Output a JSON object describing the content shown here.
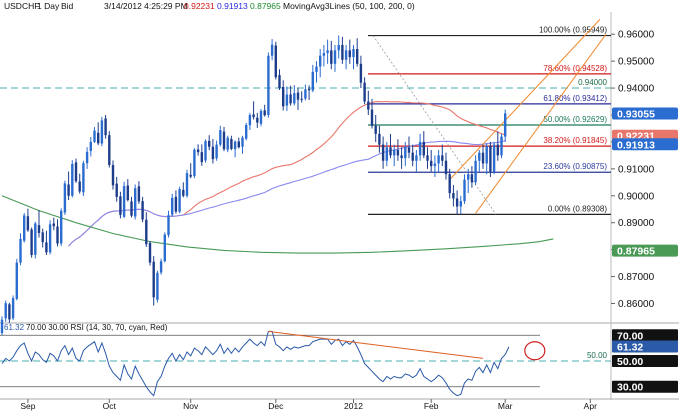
{
  "header": {
    "symbol": "USDCHF",
    "timeframe": "1 Day",
    "side": "Bid",
    "datetime": "3/14/2012  4:25:29 PM",
    "ohlc_values": [
      "0.92231",
      "0.91913",
      "0.87965"
    ],
    "ohlc_colors": [
      "#d01818",
      "#2a2ae0",
      "#1a8a2a"
    ],
    "indicator": "MovingAvg3Lines (50, 100, 200, 0)"
  },
  "rsi_header": {
    "value": "61.32",
    "params": "70.00  30.00  RSI (14, 30, 70, cyan, Red)"
  },
  "colors": {
    "bull": "#2a6ccf",
    "bear": "#1d3c8a",
    "ma50": "#e8766a",
    "ma100": "#8a8af0",
    "ma200": "#4a9a56",
    "rsi_line": "#2a5aa8",
    "rsi_trend": "#e06020",
    "circle": "#d02020",
    "channel": "#f08a30",
    "fib_0": "#222222",
    "fib_236": "#2a3a9a",
    "fib_382": "#d01818",
    "fib_500": "#1a7a5a",
    "fib_618": "#2a2a9a",
    "fib_786": "#d01818",
    "fib_100": "#222222",
    "dashed": "#4ab0b0"
  },
  "chart_data": {
    "type": "candlestick",
    "symbol": "USDCHF",
    "price_axis": {
      "range": [
        0.8535,
        0.9675
      ],
      "ticks": [
        "0.96000",
        "0.95000",
        "0.94000",
        "0.93000",
        "0.92000",
        "0.91000",
        "0.90000",
        "0.89000",
        "0.88000",
        "0.87000",
        "0.86000"
      ],
      "tick_values": [
        0.96,
        0.95,
        0.94,
        0.93,
        0.92,
        0.91,
        0.9,
        0.89,
        0.88,
        0.87,
        0.86
      ]
    },
    "x_axis": {
      "labels": [
        "Sep",
        "Oct",
        "Nov",
        "Dec",
        "2012",
        "Feb",
        "Mar",
        "Apr"
      ],
      "label_bar_index": [
        7,
        29,
        51,
        74,
        95,
        116,
        136,
        159
      ]
    },
    "candles": [
      [
        0.849,
        0.8552,
        0.8481,
        0.854
      ],
      [
        0.8545,
        0.8611,
        0.8532,
        0.8601
      ],
      [
        0.8597,
        0.8603,
        0.8528,
        0.8541
      ],
      [
        0.8545,
        0.863,
        0.8538,
        0.862
      ],
      [
        0.8617,
        0.8766,
        0.8612,
        0.8752
      ],
      [
        0.8752,
        0.8861,
        0.8742,
        0.884
      ],
      [
        0.8833,
        0.8936,
        0.8826,
        0.8927
      ],
      [
        0.8924,
        0.8952,
        0.8866,
        0.8872
      ],
      [
        0.8875,
        0.8882,
        0.877,
        0.878
      ],
      [
        0.8781,
        0.8903,
        0.8767,
        0.8897
      ],
      [
        0.8891,
        0.8947,
        0.8845,
        0.8862
      ],
      [
        0.8864,
        0.8878,
        0.8808,
        0.8828
      ],
      [
        0.8827,
        0.887,
        0.878,
        0.879
      ],
      [
        0.879,
        0.8909,
        0.8782,
        0.8894
      ],
      [
        0.8897,
        0.8919,
        0.8872,
        0.8887
      ],
      [
        0.8886,
        0.8913,
        0.8812,
        0.8823
      ],
      [
        0.8823,
        0.8953,
        0.8814,
        0.8944
      ],
      [
        0.8938,
        0.9056,
        0.8929,
        0.9046
      ],
      [
        0.9042,
        0.909,
        0.8984,
        0.9
      ],
      [
        0.9,
        0.9132,
        0.8994,
        0.9118
      ],
      [
        0.9124,
        0.9138,
        0.9048,
        0.9054
      ],
      [
        0.9053,
        0.9082,
        0.9008,
        0.9016
      ],
      [
        0.9013,
        0.913,
        0.8999,
        0.9121
      ],
      [
        0.9121,
        0.918,
        0.91,
        0.9163
      ],
      [
        0.9166,
        0.9218,
        0.9146,
        0.92
      ],
      [
        0.92,
        0.9255,
        0.9196,
        0.9242
      ],
      [
        0.9234,
        0.9273,
        0.9188,
        0.9195
      ],
      [
        0.9194,
        0.9293,
        0.9184,
        0.928
      ],
      [
        0.9287,
        0.93,
        0.9212,
        0.9225
      ],
      [
        0.9225,
        0.924,
        0.9105,
        0.9114
      ],
      [
        0.9114,
        0.9131,
        0.9023,
        0.9039
      ],
      [
        0.9045,
        0.907,
        0.8978,
        0.8996
      ],
      [
        0.8998,
        0.9015,
        0.8916,
        0.8929
      ],
      [
        0.8922,
        0.9052,
        0.8917,
        0.9036
      ],
      [
        0.9038,
        0.9062,
        0.8979,
        0.8984
      ],
      [
        0.8979,
        0.8996,
        0.892,
        0.8926
      ],
      [
        0.8923,
        0.9042,
        0.8912,
        0.9028
      ],
      [
        0.9035,
        0.9054,
        0.897,
        0.8979
      ],
      [
        0.898,
        0.8996,
        0.8902,
        0.8912
      ],
      [
        0.8911,
        0.8939,
        0.881,
        0.882
      ],
      [
        0.8825,
        0.8831,
        0.8741,
        0.8752
      ],
      [
        0.8755,
        0.8776,
        0.8592,
        0.8623
      ],
      [
        0.8614,
        0.8722,
        0.8604,
        0.8714
      ],
      [
        0.8715,
        0.8767,
        0.8707,
        0.8757
      ],
      [
        0.8757,
        0.8864,
        0.8753,
        0.8856
      ],
      [
        0.8854,
        0.8944,
        0.8845,
        0.8928
      ],
      [
        0.893,
        0.9007,
        0.8923,
        0.8992
      ],
      [
        0.8996,
        0.902,
        0.8934,
        0.8941
      ],
      [
        0.8941,
        0.9034,
        0.8935,
        0.9025
      ],
      [
        0.9022,
        0.905,
        0.8994,
        0.9
      ],
      [
        0.9,
        0.9096,
        0.8993,
        0.9084
      ],
      [
        0.9078,
        0.9121,
        0.9065,
        0.9071
      ],
      [
        0.9073,
        0.9177,
        0.9065,
        0.9171
      ],
      [
        0.9172,
        0.9191,
        0.9149,
        0.9162
      ],
      [
        0.9162,
        0.9191,
        0.9111,
        0.9125
      ],
      [
        0.9131,
        0.9209,
        0.9123,
        0.9203
      ],
      [
        0.9204,
        0.9225,
        0.9169,
        0.9182
      ],
      [
        0.9182,
        0.9211,
        0.912,
        0.9136
      ],
      [
        0.9139,
        0.9205,
        0.913,
        0.919
      ],
      [
        0.919,
        0.926,
        0.9183,
        0.9244
      ],
      [
        0.9238,
        0.9256,
        0.9166,
        0.9173
      ],
      [
        0.9171,
        0.9223,
        0.9162,
        0.9216
      ],
      [
        0.9211,
        0.9223,
        0.9169,
        0.9174
      ],
      [
        0.9173,
        0.9206,
        0.9143,
        0.9201
      ],
      [
        0.9202,
        0.9216,
        0.9176,
        0.918
      ],
      [
        0.9182,
        0.9223,
        0.9156,
        0.9216
      ],
      [
        0.9212,
        0.9271,
        0.9206,
        0.9263
      ],
      [
        0.9262,
        0.9308,
        0.9244,
        0.93
      ],
      [
        0.9302,
        0.9351,
        0.9283,
        0.9292
      ],
      [
        0.929,
        0.9308,
        0.9252,
        0.9272
      ],
      [
        0.9267,
        0.9322,
        0.9258,
        0.9315
      ],
      [
        0.9317,
        0.9338,
        0.9294,
        0.9299
      ],
      [
        0.93,
        0.9532,
        0.929,
        0.952
      ],
      [
        0.952,
        0.9582,
        0.9503,
        0.9561
      ],
      [
        0.9558,
        0.9572,
        0.9432,
        0.944
      ],
      [
        0.9448,
        0.947,
        0.9393,
        0.94
      ],
      [
        0.9404,
        0.9429,
        0.9317,
        0.9332
      ],
      [
        0.9335,
        0.9406,
        0.9315,
        0.9376
      ],
      [
        0.9376,
        0.9409,
        0.9335,
        0.9343
      ],
      [
        0.9343,
        0.9411,
        0.9335,
        0.9381
      ],
      [
        0.9383,
        0.9402,
        0.9319,
        0.9357
      ],
      [
        0.936,
        0.9388,
        0.9346,
        0.9358
      ],
      [
        0.9361,
        0.9413,
        0.9354,
        0.9395
      ],
      [
        0.9397,
        0.941,
        0.9356,
        0.9392
      ],
      [
        0.9391,
        0.9486,
        0.9385,
        0.946
      ],
      [
        0.946,
        0.95,
        0.942,
        0.948
      ],
      [
        0.948,
        0.9545,
        0.944,
        0.952
      ],
      [
        0.952,
        0.956,
        0.948,
        0.953
      ],
      [
        0.953,
        0.958,
        0.949,
        0.954
      ],
      [
        0.954,
        0.9575,
        0.947,
        0.949
      ],
      [
        0.949,
        0.956,
        0.946,
        0.954
      ],
      [
        0.954,
        0.9595,
        0.951,
        0.956
      ],
      [
        0.956,
        0.959,
        0.949,
        0.9505
      ],
      [
        0.9505,
        0.956,
        0.947,
        0.954
      ],
      [
        0.954,
        0.958,
        0.949,
        0.9515
      ],
      [
        0.9515,
        0.956,
        0.947,
        0.9545
      ],
      [
        0.9545,
        0.9585,
        0.948,
        0.949
      ],
      [
        0.949,
        0.952,
        0.94,
        0.942
      ],
      [
        0.942,
        0.944,
        0.934,
        0.935
      ],
      [
        0.935,
        0.939,
        0.93,
        0.932
      ],
      [
        0.932,
        0.936,
        0.925,
        0.926
      ],
      [
        0.926,
        0.93,
        0.92,
        0.923
      ],
      [
        0.923,
        0.926,
        0.916,
        0.919
      ],
      [
        0.919,
        0.922,
        0.91,
        0.913
      ],
      [
        0.913,
        0.92,
        0.911,
        0.918
      ],
      [
        0.918,
        0.923,
        0.914,
        0.915
      ],
      [
        0.915,
        0.919,
        0.911,
        0.917
      ],
      [
        0.917,
        0.921,
        0.913,
        0.915
      ],
      [
        0.915,
        0.918,
        0.91,
        0.914
      ],
      [
        0.914,
        0.92,
        0.911,
        0.918
      ],
      [
        0.918,
        0.922,
        0.914,
        0.916
      ],
      [
        0.916,
        0.919,
        0.911,
        0.913
      ],
      [
        0.913,
        0.917,
        0.909,
        0.915
      ],
      [
        0.915,
        0.923,
        0.913,
        0.92
      ],
      [
        0.92,
        0.924,
        0.914,
        0.915
      ],
      [
        0.915,
        0.918,
        0.91,
        0.913
      ],
      [
        0.913,
        0.917,
        0.909,
        0.911
      ],
      [
        0.911,
        0.915,
        0.907,
        0.912
      ],
      [
        0.912,
        0.917,
        0.909,
        0.915
      ],
      [
        0.915,
        0.919,
        0.911,
        0.913
      ],
      [
        0.913,
        0.916,
        0.906,
        0.908
      ],
      [
        0.908,
        0.91,
        0.899,
        0.901
      ],
      [
        0.901,
        0.904,
        0.896,
        0.899
      ],
      [
        0.899,
        0.902,
        0.893,
        0.896
      ],
      [
        0.896,
        0.9,
        0.8931,
        0.898
      ],
      [
        0.898,
        0.908,
        0.897,
        0.906
      ],
      [
        0.906,
        0.91,
        0.901,
        0.908
      ],
      [
        0.908,
        0.911,
        0.903,
        0.905
      ],
      [
        0.905,
        0.915,
        0.904,
        0.913
      ],
      [
        0.913,
        0.917,
        0.909,
        0.916
      ],
      [
        0.916,
        0.919,
        0.91,
        0.912
      ],
      [
        0.912,
        0.9195,
        0.908,
        0.9185
      ],
      [
        0.9185,
        0.92,
        0.907,
        0.909
      ],
      [
        0.909,
        0.92,
        0.908,
        0.919
      ],
      [
        0.919,
        0.924,
        0.913,
        0.915
      ],
      [
        0.915,
        0.923,
        0.914,
        0.922
      ],
      [
        0.922,
        0.932,
        0.92,
        0.9306
      ]
    ],
    "moving_averages": [
      {
        "name": "MA 50",
        "period": 50,
        "last_value": 0.92231
      },
      {
        "name": "MA 100",
        "period": 100,
        "last_value": 0.91913
      },
      {
        "name": "MA 200",
        "period": 200,
        "last_value": 0.87965,
        "points": [
          [
            0,
            0.9
          ],
          [
            10,
            0.8945
          ],
          [
            20,
            0.89
          ],
          [
            30,
            0.886
          ],
          [
            40,
            0.883
          ],
          [
            50,
            0.881
          ],
          [
            60,
            0.8797
          ],
          [
            70,
            0.879
          ],
          [
            80,
            0.8787
          ],
          [
            90,
            0.8787
          ],
          [
            100,
            0.879
          ],
          [
            110,
            0.8796
          ],
          [
            120,
            0.8803
          ],
          [
            130,
            0.8812
          ],
          [
            140,
            0.8822
          ],
          [
            145,
            0.8829
          ],
          [
            149,
            0.884
          ]
        ]
      }
    ],
    "fibonacci": [
      {
        "label": "100.00% (0.95949)",
        "value": 0.95949
      },
      {
        "label": "78.60% (0.94528)",
        "value": 0.94528
      },
      {
        "label": "61.80% (0.93412)",
        "value": 0.93412
      },
      {
        "label": "50.00% (0.92629)",
        "value": 0.92629
      },
      {
        "label": "38.20% (0.91845)",
        "value": 0.91845
      },
      {
        "label": "23.60% (0.90875)",
        "value": 0.90875
      },
      {
        "label": "0.00% (0.89308)",
        "value": 0.89308
      }
    ],
    "horizontal_level": {
      "label": "0.94000",
      "value": 0.94
    },
    "price_flags": [
      {
        "label": "0.93055",
        "value": 0.93055,
        "color": "#2a6ccf"
      },
      {
        "label": "0.92231",
        "value": 0.92231,
        "color": "#e8766a"
      },
      {
        "label": "0.91913",
        "value": 0.91913,
        "color": "#2a6ccf"
      },
      {
        "label": "0.87965",
        "value": 0.87965,
        "color": "#4a9a56"
      }
    ],
    "rsi": {
      "range": [
        22,
        78
      ],
      "last": "61.32",
      "ticks": [
        "70.00",
        "50.00",
        "30.00"
      ],
      "tick_values": [
        70,
        50,
        30
      ],
      "mid_label": "50.00",
      "values": [
        48,
        52,
        50,
        53,
        58,
        62,
        64,
        56,
        50,
        57,
        55,
        51,
        49,
        56,
        54,
        50,
        58,
        62,
        55,
        60,
        52,
        50,
        58,
        61,
        63,
        65,
        57,
        64,
        56,
        46,
        41,
        38,
        35,
        47,
        40,
        36,
        46,
        40,
        35,
        30,
        26,
        23,
        34,
        38,
        46,
        52,
        56,
        50,
        55,
        51,
        57,
        54,
        60,
        58,
        55,
        61,
        58,
        55,
        58,
        63,
        56,
        60,
        56,
        60,
        57,
        61,
        64,
        67,
        64,
        62,
        65,
        62,
        73,
        73,
        63,
        61,
        58,
        61,
        59,
        61,
        60,
        61,
        62,
        62,
        65,
        66,
        67,
        67,
        67,
        63,
        66,
        67,
        62,
        65,
        63,
        66,
        61,
        55,
        48,
        45,
        42,
        39,
        36,
        34,
        38,
        36,
        38,
        37,
        37,
        40,
        39,
        37,
        39,
        44,
        38,
        36,
        34,
        36,
        39,
        37,
        33,
        28,
        25,
        23,
        24,
        33,
        36,
        35,
        42,
        45,
        41,
        47,
        41,
        49,
        44,
        52,
        55,
        61
      ]
    }
  }
}
